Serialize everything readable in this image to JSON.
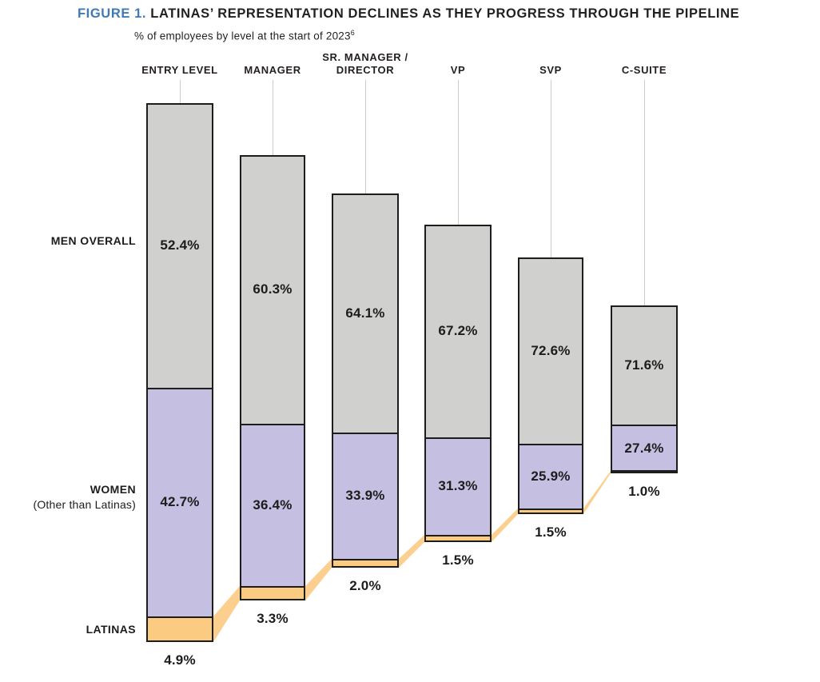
{
  "figure": {
    "label": "FIGURE 1.",
    "title": "LATINAS’ REPRESENTATION DECLINES AS THEY PROGRESS THROUGH THE PIPELINE",
    "subtitle": "% of employees by level at the start of 2023",
    "subtitle_superscript": "6"
  },
  "row_labels": {
    "men": "MEN OVERALL",
    "women_line1": "WOMEN",
    "women_line2": "(Other than Latinas)",
    "latinas": "LATINAS"
  },
  "colors": {
    "men_segment": "#d0d0ce",
    "women_segment": "#c5c0e1",
    "latinas_segment": "#fccb82",
    "ribbon": "#fccf8e",
    "figure_label_blue": "#3e7bb6",
    "bar_border": "#1d1d1b",
    "drop_line": "#cccccc"
  },
  "chart_data": {
    "type": "bar",
    "stacked": true,
    "title": "LATINAS’ REPRESENTATION DECLINES AS THEY PROGRESS THROUGH THE PIPELINE",
    "subtitle": "% of employees by level at the start of 2023 (superscript 6)",
    "unit": "%",
    "categories": [
      "ENTRY LEVEL",
      "MANAGER",
      "SR. MANAGER /\nDIRECTOR",
      "VP",
      "SVP",
      "C-SUITE"
    ],
    "series": [
      {
        "name": "MEN OVERALL",
        "values": [
          52.4,
          60.3,
          64.1,
          67.2,
          72.6,
          71.6
        ]
      },
      {
        "name": "WOMEN (Other than Latinas)",
        "values": [
          42.7,
          36.4,
          33.9,
          31.3,
          25.9,
          27.4
        ]
      },
      {
        "name": "LATINAS",
        "values": [
          4.9,
          3.3,
          2.0,
          1.5,
          1.5,
          1.0
        ]
      }
    ],
    "value_labels": {
      "men": [
        "52.4%",
        "60.3%",
        "64.1%",
        "67.2%",
        "72.6%",
        "71.6%"
      ],
      "women": [
        "42.7%",
        "36.4%",
        "33.9%",
        "31.3%",
        "25.9%",
        "27.4%"
      ],
      "latinas": [
        "4.9%",
        "3.3%",
        "2.0%",
        "1.5%",
        "1.5%",
        "1.0%"
      ]
    },
    "layout_hints": {
      "funnel_style": "each successive bar is shorter and raised; latina segments linked by orange ribbons",
      "legend_position": "left row labels",
      "grid": false
    }
  }
}
